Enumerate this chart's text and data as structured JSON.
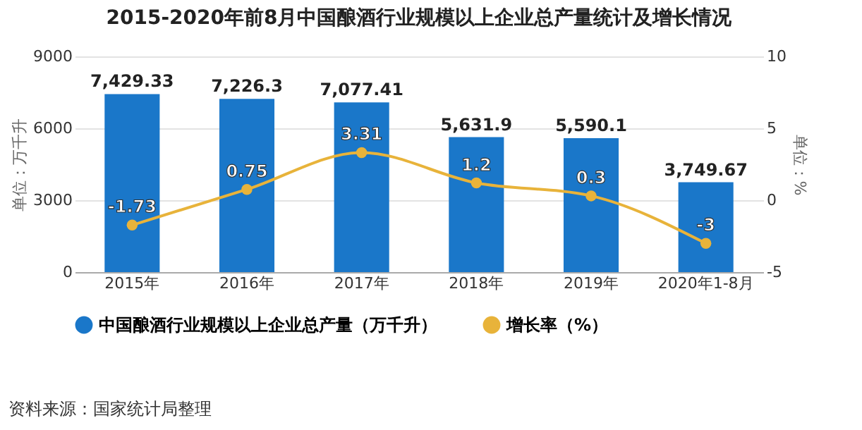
{
  "chart_data": {
    "type": "bar",
    "title": "2015-2020年前8月中国酿酒行业规模以上企业总产量统计及增长情况",
    "categories": [
      "2015年",
      "2016年",
      "2017年",
      "2018年",
      "2019年",
      "2020年1-8月"
    ],
    "series": [
      {
        "name": "中国酿酒行业规模以上企业总产量（万千升）",
        "color": "#1a77c9",
        "values": [
          7429.33,
          7226.3,
          7077.41,
          5631.9,
          5590.1,
          3749.67
        ],
        "value_labels": [
          "7,429.33",
          "7,226.3",
          "7,077.41",
          "5,631.9",
          "5,590.1",
          "3,749.67"
        ]
      },
      {
        "name": "增长率（%）",
        "type": "line",
        "axis": "y2",
        "color": "#e8b33a",
        "values": [
          -1.73,
          0.75,
          3.31,
          1.2,
          0.3,
          -3
        ],
        "value_labels": [
          "-1.73",
          "0.75",
          "3.31",
          "1.2",
          "0.3",
          "-3"
        ]
      }
    ],
    "ylabel": "单位：万千升",
    "y2label": "单位：%",
    "ylim": [
      0,
      9000
    ],
    "yticks": [
      0,
      3000,
      6000,
      9000
    ],
    "y2lim": [
      -5,
      10
    ],
    "y2ticks": [
      -5,
      0,
      5,
      10
    ],
    "grid": "y",
    "legend": "bottom",
    "marker": "circle",
    "line_style": "solid",
    "annotations": [
      "资料来源：国家统计局整理"
    ]
  }
}
